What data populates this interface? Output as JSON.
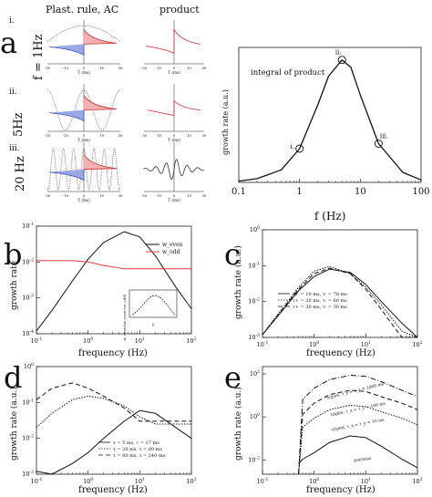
{
  "figure": {
    "panel_letters": [
      "a",
      "b",
      "c",
      "d",
      "e"
    ],
    "panel_a": {
      "col_headers": [
        "Plast. rule, AC",
        "product"
      ],
      "row_labels": [
        "i.",
        "ii.",
        "iii."
      ],
      "row_freqs": [
        "f = 1Hz",
        "5Hz",
        "20 Hz"
      ],
      "mini_xlabel": "T (ms)",
      "mini_ticks": [
        "-30",
        "-10",
        "0",
        "10",
        "30"
      ],
      "inset_label": "integral of product",
      "xlabel": "f (Hz)",
      "ylabel": "growth rate (a.u.)",
      "xticks": [
        "0.1",
        "1",
        "10",
        "100"
      ],
      "markers": [
        "i.",
        "ii.",
        "iii."
      ]
    },
    "panel_b": {
      "xlabel": "frequency (Hz)",
      "ylabel": "growth rate",
      "xticks": [
        "10^-1",
        "10^0",
        "10^1",
        "10^2"
      ],
      "yticks": [
        "10^-1",
        "10^-2",
        "10^-3",
        "10^-4"
      ],
      "legend": [
        "w_even",
        "w_odd"
      ],
      "inset_xlabel": "f",
      "inset_ylabel": "w_even/(w_even+w_odd)"
    },
    "panel_c": {
      "xlabel": "frequency (Hz)",
      "ylabel": "growth rate (a.u.)",
      "xticks": [
        "10^-1",
        "10^0",
        "10^1",
        "10^2"
      ],
      "yticks": [
        "10^0",
        "10^-1",
        "10^-2",
        "10^-3"
      ],
      "legend": [
        "τ+ = 10 ms, τ- = 70 ms",
        "τ+ = 20 ms, τ- = 60 ms",
        "τ+ = 30 ms, τ- = 30 ms"
      ]
    },
    "panel_d": {
      "xlabel": "frequency (Hz)",
      "ylabel": "growth rate (a.u.)",
      "xticks": [
        "10^-1",
        "10^0",
        "10^1",
        "10^2"
      ],
      "yticks": [
        "10^0",
        "10^-1",
        "10^-2",
        "10^-3"
      ],
      "legend": [
        "τ = 5 ms, τ = 17 ms",
        "τ = 20 ms, τ = 60 ms",
        "τ = 80 ms, τ = 240 ms"
      ]
    },
    "panel_e": {
      "xlabel": "frequency (Hz)",
      "ylabel": "growth rate (a.u.)",
      "xticks": [
        "10^-1",
        "10^0",
        "10^1",
        "10^2"
      ],
      "yticks": [
        "10^2",
        "10^0",
        "10^-2"
      ],
      "curve_labels": [
        "triplet, τ_x = τ_y = 1000 ms",
        "triplet, τ_x = τ_y = 100 ms",
        "triplet, τ_x = τ_y = 10 ms",
        "pairwise"
      ]
    }
  },
  "chart_data": [
    {
      "type": "line",
      "panel": "a",
      "xscale": "log",
      "xlim": [
        0.1,
        100
      ],
      "xlabel": "f (Hz)",
      "ylabel": "growth rate (a.u.)",
      "annotation": "integral of product",
      "x": [
        0.1,
        0.2,
        0.5,
        1,
        2,
        3,
        5,
        7,
        10,
        20,
        50,
        100
      ],
      "series": [
        {
          "values": [
            0.01,
            0.03,
            0.1,
            0.27,
            0.62,
            0.85,
            0.98,
            0.92,
            0.7,
            0.31,
            0.08,
            0.02
          ]
        }
      ],
      "markers": [
        {
          "label": "i.",
          "x": 1,
          "y": 0.27
        },
        {
          "label": "ii.",
          "x": 5,
          "y": 0.98
        },
        {
          "label": "iii.",
          "x": 20,
          "y": 0.31
        }
      ]
    },
    {
      "type": "line",
      "panel": "b",
      "xscale": "log",
      "yscale": "log",
      "xlim": [
        0.1,
        100
      ],
      "ylim": [
        0.0001,
        0.1
      ],
      "xlabel": "frequency (Hz)",
      "ylabel": "growth rate",
      "x": [
        0.1,
        0.2,
        0.5,
        1,
        2,
        5,
        10,
        20,
        50,
        100
      ],
      "series": [
        {
          "name": "w_even",
          "values": [
            0.00012,
            0.00045,
            0.003,
            0.012,
            0.035,
            0.07,
            0.05,
            0.015,
            0.002,
            0.0005
          ]
        },
        {
          "name": "w_odd",
          "values": [
            0.011,
            0.011,
            0.011,
            0.01,
            0.008,
            0.0065,
            0.0065,
            0.0065,
            0.0065,
            0.0065
          ]
        }
      ]
    },
    {
      "type": "line",
      "panel": "c",
      "xscale": "log",
      "yscale": "log",
      "xlim": [
        0.1,
        100
      ],
      "ylim": [
        0.001,
        1
      ],
      "xlabel": "frequency (Hz)",
      "ylabel": "growth rate (a.u.)",
      "x": [
        0.1,
        0.2,
        0.5,
        1,
        2,
        5,
        10,
        20,
        50,
        100
      ],
      "series": [
        {
          "name": "τ+ = 10 ms, τ- = 70 ms",
          "values": [
            0.0012,
            0.004,
            0.02,
            0.05,
            0.08,
            0.065,
            0.03,
            0.01,
            0.0025,
            0.001
          ]
        },
        {
          "name": "τ+ = 20 ms, τ- = 60 ms",
          "values": [
            0.0012,
            0.0045,
            0.025,
            0.07,
            0.095,
            0.06,
            0.025,
            0.008,
            0.0015,
            0.0005
          ]
        },
        {
          "name": "τ+ = 30 ms, τ- = 30 ms",
          "values": [
            0.0012,
            0.0042,
            0.022,
            0.06,
            0.085,
            0.06,
            0.022,
            0.006,
            0.0009,
            0.0002
          ]
        }
      ]
    },
    {
      "type": "line",
      "panel": "d",
      "xscale": "log",
      "yscale": "log",
      "xlim": [
        0.1,
        100
      ],
      "ylim": [
        0.001,
        1
      ],
      "xlabel": "frequency (Hz)",
      "ylabel": "growth rate (a.u.)",
      "x": [
        0.1,
        0.2,
        0.5,
        1,
        2,
        5,
        10,
        20,
        50,
        100
      ],
      "series": [
        {
          "name": "τ = 5 ms, τ = 17 ms",
          "values": [
            0.0012,
            0.001,
            0.002,
            0.004,
            0.01,
            0.03,
            0.06,
            0.05,
            0.02,
            0.01
          ]
        },
        {
          "name": "τ = 20 ms, τ = 60 ms",
          "values": [
            0.02,
            0.05,
            0.12,
            0.15,
            0.13,
            0.08,
            0.04,
            0.025,
            0.025,
            0.025
          ]
        },
        {
          "name": "τ = 80 ms, τ = 240 ms",
          "values": [
            0.12,
            0.25,
            0.35,
            0.25,
            0.15,
            0.07,
            0.03,
            0.03,
            0.03,
            0.03
          ]
        }
      ]
    },
    {
      "type": "line",
      "panel": "e",
      "xscale": "log",
      "yscale": "log",
      "xlim": [
        0.1,
        100
      ],
      "ylim": [
        0.001,
        100
      ],
      "xlabel": "frequency (Hz)",
      "ylabel": "growth rate (a.u.)",
      "x": [
        0.5,
        0.6,
        1,
        2,
        5,
        10,
        20,
        50,
        100
      ],
      "series": [
        {
          "name": "triplet, τ_x = τ_y = 1000 ms",
          "values": [
            0.001,
            3,
            10,
            25,
            40,
            35,
            20,
            8,
            4
          ]
        },
        {
          "name": "triplet, τ_x = τ_y = 100 ms",
          "values": [
            0.001,
            0.6,
            2,
            5,
            8,
            7,
            4,
            2,
            1
          ]
        },
        {
          "name": "triplet, τ_x = τ_y = 10 ms",
          "values": [
            0.001,
            0.15,
            0.4,
            1.0,
            1.6,
            1.4,
            0.8,
            0.4,
            0.2
          ]
        },
        {
          "name": "pairwise",
          "values": [
            0.003,
            0.005,
            0.01,
            0.03,
            0.06,
            0.05,
            0.02,
            0.005,
            0.002
          ]
        }
      ]
    }
  ]
}
